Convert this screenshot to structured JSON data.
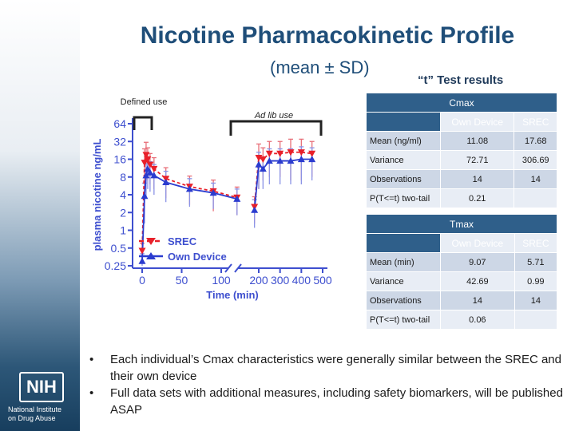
{
  "slide": {
    "title": "Nicotine Pharmacokinetic Profile",
    "subtitle": "(mean ± SD)",
    "ttest_title": "“t” Test results",
    "bullets": [
      "Each individual’s Cmax characteristics were generally similar between the SREC and their own device",
      "Full data sets with additional measures, including safety biomarkers, will be published ASAP"
    ],
    "logo": {
      "mark": "NIH",
      "line1": "National Institute",
      "line2": "on Drug Abuse"
    }
  },
  "annotations": {
    "defined_use": "Defined use",
    "ad_lib_use": "Ad lib use"
  },
  "cmax_table": {
    "title": "Cmax",
    "columns": [
      "Own Device",
      "SREC"
    ],
    "rows": [
      {
        "label": "Mean (ng/ml)",
        "own": "11.08",
        "srec": "17.68"
      },
      {
        "label": "Variance",
        "own": "72.71",
        "srec": "306.69"
      },
      {
        "label": "Observations",
        "own": "14",
        "srec": "14"
      },
      {
        "label": "P(T<=t) two-tail",
        "own": "0.21",
        "srec": ""
      }
    ]
  },
  "tmax_table": {
    "title": "Tmax",
    "columns": [
      "Own Device",
      "SREC"
    ],
    "rows": [
      {
        "label": "Mean (min)",
        "own": "9.07",
        "srec": "5.71"
      },
      {
        "label": "Variance",
        "own": "42.69",
        "srec": "0.99"
      },
      {
        "label": "Observations",
        "own": "14",
        "srec": "14"
      },
      {
        "label": "P(T<=t) two-tail",
        "own": "0.06",
        "srec": ""
      }
    ]
  },
  "chart_data": {
    "type": "line",
    "xlabel": "Time (min)",
    "ylabel": "plasma nicotine ng/mL",
    "y_scale": "log2",
    "ylim": [
      0.25,
      64
    ],
    "yticks": [
      "0.25",
      "0.5",
      "1",
      "2",
      "4",
      "8",
      "16",
      "32",
      "64"
    ],
    "xticks": [
      "0",
      "50",
      "100",
      "200",
      "300",
      "400",
      "500"
    ],
    "x_axis_break": true,
    "legend_position": "bottom-left",
    "series": [
      {
        "name": "SREC",
        "color": "#e8202a",
        "marker": "triangle-down",
        "x": [
          0,
          3,
          5,
          7,
          10,
          15,
          30,
          60,
          90,
          120,
          180,
          200,
          220,
          250,
          300,
          350,
          400,
          450
        ],
        "y": [
          0.45,
          14,
          19,
          16,
          13,
          11,
          7.5,
          5.5,
          4.6,
          3.6,
          2.5,
          17,
          16,
          20,
          20,
          21,
          21,
          20
        ],
        "sd": [
          0.15,
          10,
          12,
          9,
          7,
          6,
          4,
          2.8,
          2.5,
          1.8,
          1.2,
          12,
          9,
          12,
          12,
          14,
          14,
          12
        ]
      },
      {
        "name": "Own Device",
        "color": "#2b3ccf",
        "marker": "triangle-up",
        "x": [
          0,
          3,
          5,
          7,
          10,
          15,
          30,
          60,
          90,
          120,
          180,
          200,
          220,
          250,
          300,
          350,
          400,
          450
        ],
        "y": [
          0.3,
          3.8,
          8.5,
          11,
          9.5,
          8.5,
          6.5,
          5,
          4.3,
          3.4,
          2.2,
          13,
          11,
          15,
          15,
          15,
          16,
          16
        ],
        "sd": [
          0.1,
          2.5,
          5,
          6,
          5,
          4.5,
          3.5,
          2.5,
          2,
          1.6,
          1.1,
          8,
          6,
          9,
          9,
          9,
          10,
          9
        ]
      }
    ]
  }
}
